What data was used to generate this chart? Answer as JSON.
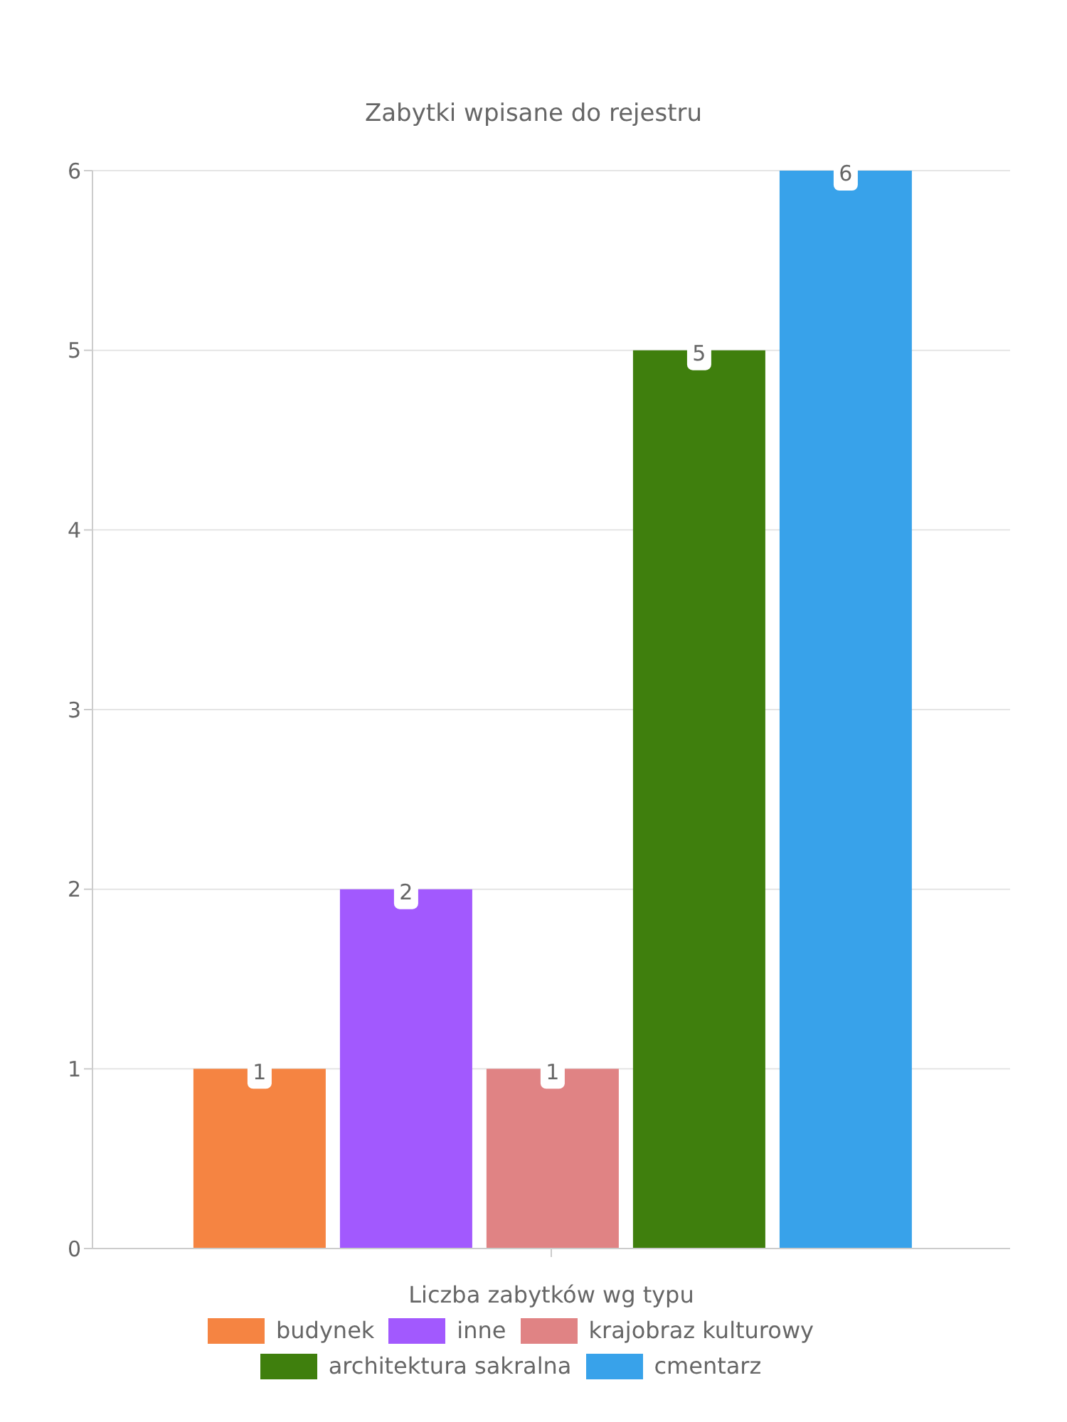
{
  "chart_data": {
    "type": "bar",
    "title": "Zabytki wpisane do rejestru",
    "xlabel": "Liczba zabytków wg typu",
    "categories": [
      null
    ],
    "series": [
      {
        "name": "budynek",
        "color": "#f58442",
        "values": [
          1
        ]
      },
      {
        "name": "inne",
        "color": "#a259fe",
        "values": [
          2
        ]
      },
      {
        "name": "krajobraz kulturowy",
        "color": "#e08384",
        "values": [
          1
        ]
      },
      {
        "name": "architektura sakralna",
        "color": "#3f7f0d",
        "values": [
          5
        ]
      },
      {
        "name": "cmentarz",
        "color": "#38a2ea",
        "values": [
          6
        ]
      }
    ],
    "ylim": [
      0,
      6
    ],
    "yticks": [
      0,
      1,
      2,
      3,
      4,
      5,
      6
    ],
    "grid": "y",
    "legend": "bottom",
    "data_labels": true
  }
}
